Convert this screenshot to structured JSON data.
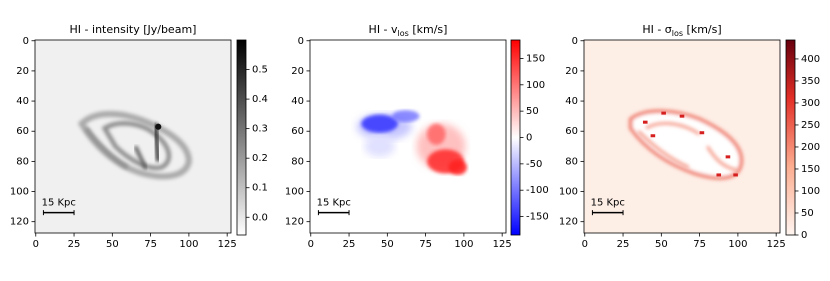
{
  "chart_data": [
    {
      "type": "image",
      "title": [
        "HI - intensity [Jy/beam]"
      ],
      "cmap": "gray_r",
      "xlim": [
        -0.5,
        127.5
      ],
      "ylim": [
        127.5,
        -0.5
      ],
      "xticks": [
        0,
        25,
        50,
        75,
        100,
        125
      ],
      "yticks": [
        0,
        20,
        40,
        60,
        80,
        100,
        120
      ],
      "clim": [
        -0.06,
        0.6
      ],
      "cticks": [
        {
          "value": 0,
          "label": "0.0"
        },
        0.1,
        0.2,
        0.3,
        0.4,
        0.5
      ],
      "scalebar": {
        "label": "15 Kpc",
        "x": [
          5,
          25
        ],
        "y": 114
      }
    },
    {
      "type": "image",
      "title": [
        "HI - v",
        "los",
        " [km/s]"
      ],
      "cmap": "bwr",
      "xlim": [
        -0.5,
        127.5
      ],
      "ylim": [
        127.5,
        -0.5
      ],
      "xticks": [
        0,
        25,
        50,
        75,
        100,
        125
      ],
      "yticks": [
        0,
        20,
        40,
        60,
        80,
        100,
        120
      ],
      "clim": [
        -185,
        185
      ],
      "cticks": [
        -150,
        -100,
        -50,
        0,
        50,
        100,
        150
      ],
      "scalebar": {
        "label": "15 Kpc",
        "x": [
          5,
          25
        ],
        "y": 114
      }
    },
    {
      "type": "image",
      "title": [
        "HI - σ",
        "los",
        " [km/s]"
      ],
      "cmap": "Reds",
      "xlim": [
        -0.5,
        127.5
      ],
      "ylim": [
        127.5,
        -0.5
      ],
      "xticks": [
        0,
        25,
        50,
        75,
        100,
        125
      ],
      "yticks": [
        0,
        20,
        40,
        60,
        80,
        100,
        120
      ],
      "clim": [
        0,
        443
      ],
      "cticks": [
        0,
        50,
        100,
        150,
        200,
        250,
        300,
        350,
        400
      ],
      "scalebar": {
        "label": "15 Kpc",
        "x": [
          5,
          25
        ],
        "y": 114
      }
    }
  ]
}
